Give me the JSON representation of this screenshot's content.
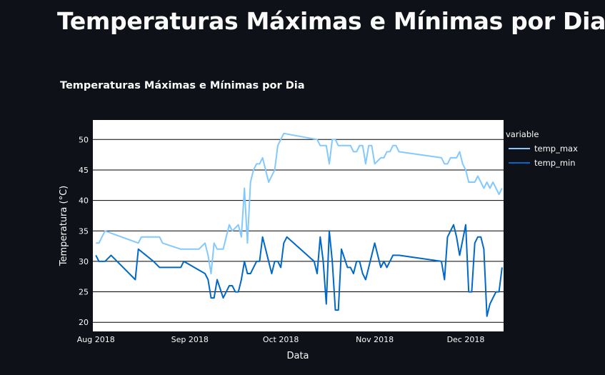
{
  "page": {
    "title": "Temperaturas Máximas e Mínimas por Dia"
  },
  "chart_data": {
    "type": "line",
    "title": "Temperaturas Máximas e Mínimas por Dia",
    "xlabel": "Data",
    "ylabel": "Temperatura (°C)",
    "ylim": [
      18.5,
      53.2
    ],
    "xlim": [
      "2018-07-31",
      "2018-12-10"
    ],
    "yticks": [
      20,
      25,
      30,
      35,
      40,
      45,
      50
    ],
    "xticks": [
      {
        "date": "2018-08-01",
        "label": "Aug 2018"
      },
      {
        "date": "2018-09-01",
        "label": "Sep 2018"
      },
      {
        "date": "2018-10-01",
        "label": "Oct 2018"
      },
      {
        "date": "2018-11-01",
        "label": "Nov 2018"
      },
      {
        "date": "2018-12-01",
        "label": "Dec 2018"
      }
    ],
    "grid": true,
    "plot_background": "#ffffff",
    "gridline_color": "#000000",
    "legend": {
      "title": "variable",
      "placement": "right"
    },
    "series": [
      {
        "name": "temp_max",
        "color": "#83c9ff",
        "points": [
          [
            "2018-08-01",
            33
          ],
          [
            "2018-08-02",
            33
          ],
          [
            "2018-08-03",
            34
          ],
          [
            "2018-08-04",
            35
          ],
          [
            "2018-08-15",
            33
          ],
          [
            "2018-08-16",
            34
          ],
          [
            "2018-08-22",
            34
          ],
          [
            "2018-08-23",
            33
          ],
          [
            "2018-08-29",
            32
          ],
          [
            "2018-09-04",
            32
          ],
          [
            "2018-09-06",
            33
          ],
          [
            "2018-09-07",
            31
          ],
          [
            "2018-09-08",
            28
          ],
          [
            "2018-09-09",
            33
          ],
          [
            "2018-09-10",
            32
          ],
          [
            "2018-09-12",
            32
          ],
          [
            "2018-09-13",
            34
          ],
          [
            "2018-09-14",
            36
          ],
          [
            "2018-09-15",
            35
          ],
          [
            "2018-09-17",
            36
          ],
          [
            "2018-09-18",
            34
          ],
          [
            "2018-09-19",
            42
          ],
          [
            "2018-09-20",
            33
          ],
          [
            "2018-09-21",
            43
          ],
          [
            "2018-09-22",
            45
          ],
          [
            "2018-09-23",
            46
          ],
          [
            "2018-09-24",
            46
          ],
          [
            "2018-09-25",
            47
          ],
          [
            "2018-09-26",
            45
          ],
          [
            "2018-09-27",
            43
          ],
          [
            "2018-09-29",
            45
          ],
          [
            "2018-09-30",
            49
          ],
          [
            "2018-10-01",
            50
          ],
          [
            "2018-10-02",
            51
          ],
          [
            "2018-10-13",
            50
          ],
          [
            "2018-10-14",
            49
          ],
          [
            "2018-10-16",
            49
          ],
          [
            "2018-10-17",
            46
          ],
          [
            "2018-10-18",
            50
          ],
          [
            "2018-10-19",
            50
          ],
          [
            "2018-10-20",
            49
          ],
          [
            "2018-10-24",
            49
          ],
          [
            "2018-10-25",
            48
          ],
          [
            "2018-10-26",
            48
          ],
          [
            "2018-10-27",
            49
          ],
          [
            "2018-10-28",
            49
          ],
          [
            "2018-10-29",
            46
          ],
          [
            "2018-10-30",
            49
          ],
          [
            "2018-10-31",
            49
          ],
          [
            "2018-11-01",
            46
          ],
          [
            "2018-11-03",
            47
          ],
          [
            "2018-11-04",
            47
          ],
          [
            "2018-11-05",
            48
          ],
          [
            "2018-11-06",
            48
          ],
          [
            "2018-11-07",
            49
          ],
          [
            "2018-11-08",
            49
          ],
          [
            "2018-11-09",
            48
          ],
          [
            "2018-11-23",
            47
          ],
          [
            "2018-11-24",
            46
          ],
          [
            "2018-11-25",
            46
          ],
          [
            "2018-11-26",
            47
          ],
          [
            "2018-11-27",
            47
          ],
          [
            "2018-11-28",
            47
          ],
          [
            "2018-11-29",
            48
          ],
          [
            "2018-11-30",
            46
          ],
          [
            "2018-12-01",
            45
          ],
          [
            "2018-12-02",
            43
          ],
          [
            "2018-12-03",
            43
          ],
          [
            "2018-12-04",
            43
          ],
          [
            "2018-12-05",
            44
          ],
          [
            "2018-12-06",
            43
          ],
          [
            "2018-12-07",
            42
          ],
          [
            "2018-12-08",
            43
          ],
          [
            "2018-12-09",
            42
          ],
          [
            "2018-12-10",
            43
          ],
          [
            "2018-12-11",
            42
          ],
          [
            "2018-12-12",
            41
          ],
          [
            "2018-12-13",
            42
          ]
        ]
      },
      {
        "name": "temp_min",
        "color": "#0068c9",
        "points": [
          [
            "2018-08-01",
            31
          ],
          [
            "2018-08-02",
            30
          ],
          [
            "2018-08-04",
            30
          ],
          [
            "2018-08-06",
            31
          ],
          [
            "2018-08-14",
            27
          ],
          [
            "2018-08-15",
            32
          ],
          [
            "2018-08-20",
            30
          ],
          [
            "2018-08-22",
            29
          ],
          [
            "2018-08-29",
            29
          ],
          [
            "2018-08-30",
            30
          ],
          [
            "2018-09-06",
            28
          ],
          [
            "2018-09-07",
            27
          ],
          [
            "2018-09-08",
            24
          ],
          [
            "2018-09-09",
            24
          ],
          [
            "2018-09-10",
            27
          ],
          [
            "2018-09-12",
            24
          ],
          [
            "2018-09-14",
            26
          ],
          [
            "2018-09-15",
            26
          ],
          [
            "2018-09-16",
            25
          ],
          [
            "2018-09-17",
            25
          ],
          [
            "2018-09-18",
            27
          ],
          [
            "2018-09-19",
            30
          ],
          [
            "2018-09-20",
            28
          ],
          [
            "2018-09-21",
            28
          ],
          [
            "2018-09-23",
            30
          ],
          [
            "2018-09-24",
            30
          ],
          [
            "2018-09-25",
            34
          ],
          [
            "2018-09-27",
            30
          ],
          [
            "2018-09-28",
            28
          ],
          [
            "2018-09-29",
            30
          ],
          [
            "2018-09-30",
            30
          ],
          [
            "2018-10-01",
            29
          ],
          [
            "2018-10-02",
            33
          ],
          [
            "2018-10-03",
            34
          ],
          [
            "2018-10-12",
            30
          ],
          [
            "2018-10-13",
            28
          ],
          [
            "2018-10-14",
            34
          ],
          [
            "2018-10-15",
            30
          ],
          [
            "2018-10-16",
            23
          ],
          [
            "2018-10-17",
            35
          ],
          [
            "2018-10-18",
            30
          ],
          [
            "2018-10-19",
            22
          ],
          [
            "2018-10-20",
            22
          ],
          [
            "2018-10-21",
            32
          ],
          [
            "2018-10-23",
            29
          ],
          [
            "2018-10-24",
            29
          ],
          [
            "2018-10-25",
            28
          ],
          [
            "2018-10-26",
            30
          ],
          [
            "2018-10-27",
            30
          ],
          [
            "2018-10-28",
            28
          ],
          [
            "2018-10-29",
            27
          ],
          [
            "2018-10-30",
            29
          ],
          [
            "2018-11-01",
            33
          ],
          [
            "2018-11-03",
            29
          ],
          [
            "2018-11-04",
            30
          ],
          [
            "2018-11-05",
            29
          ],
          [
            "2018-11-07",
            31
          ],
          [
            "2018-11-09",
            31
          ],
          [
            "2018-11-23",
            30
          ],
          [
            "2018-11-24",
            27
          ],
          [
            "2018-11-25",
            34
          ],
          [
            "2018-11-27",
            36
          ],
          [
            "2018-11-28",
            34
          ],
          [
            "2018-11-29",
            31
          ],
          [
            "2018-12-01",
            36
          ],
          [
            "2018-12-02",
            25
          ],
          [
            "2018-12-03",
            25
          ],
          [
            "2018-12-04",
            33
          ],
          [
            "2018-12-05",
            34
          ],
          [
            "2018-12-06",
            34
          ],
          [
            "2018-12-07",
            32
          ],
          [
            "2018-12-08",
            21
          ],
          [
            "2018-12-09",
            23
          ],
          [
            "2018-12-11",
            25
          ],
          [
            "2018-12-12",
            25
          ],
          [
            "2018-12-13",
            29
          ]
        ]
      }
    ]
  }
}
